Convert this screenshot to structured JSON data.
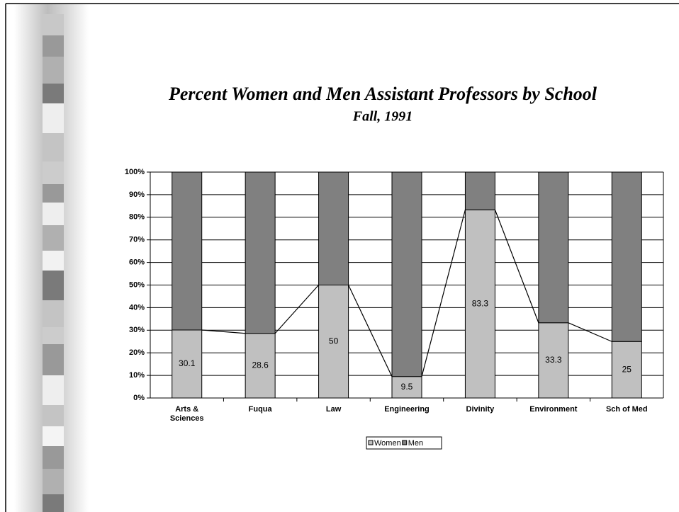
{
  "chart_data": {
    "type": "stacked_bar",
    "title": "Percent Women and Men Assistant Professors by School",
    "subtitle": "Fall, 1991",
    "categories": [
      "Arts & Sciences",
      "Fuqua",
      "Law",
      "Engineering",
      "Divinity",
      "Environment",
      "Sch of Med"
    ],
    "series": [
      {
        "name": "Women",
        "color": "#c0c0c0",
        "values": [
          30.1,
          28.6,
          50,
          9.5,
          83.3,
          33.3,
          25
        ]
      },
      {
        "name": "Men",
        "color": "#808080",
        "values": [
          69.9,
          71.4,
          50,
          90.5,
          16.7,
          66.7,
          75
        ]
      }
    ],
    "ylim": [
      0,
      100
    ],
    "yticks": [
      {
        "value": 0,
        "label": "0%"
      },
      {
        "value": 10,
        "label": "10%"
      },
      {
        "value": 20,
        "label": "20%"
      },
      {
        "value": 30,
        "label": "30%"
      },
      {
        "value": 40,
        "label": "40%"
      },
      {
        "value": 50,
        "label": "50%"
      },
      {
        "value": 60,
        "label": "60%"
      },
      {
        "value": 70,
        "label": "70%"
      },
      {
        "value": 80,
        "label": "80%"
      },
      {
        "value": 90,
        "label": "90%"
      },
      {
        "value": 100,
        "label": "100%"
      }
    ],
    "grid": true,
    "legend": "bottom"
  }
}
